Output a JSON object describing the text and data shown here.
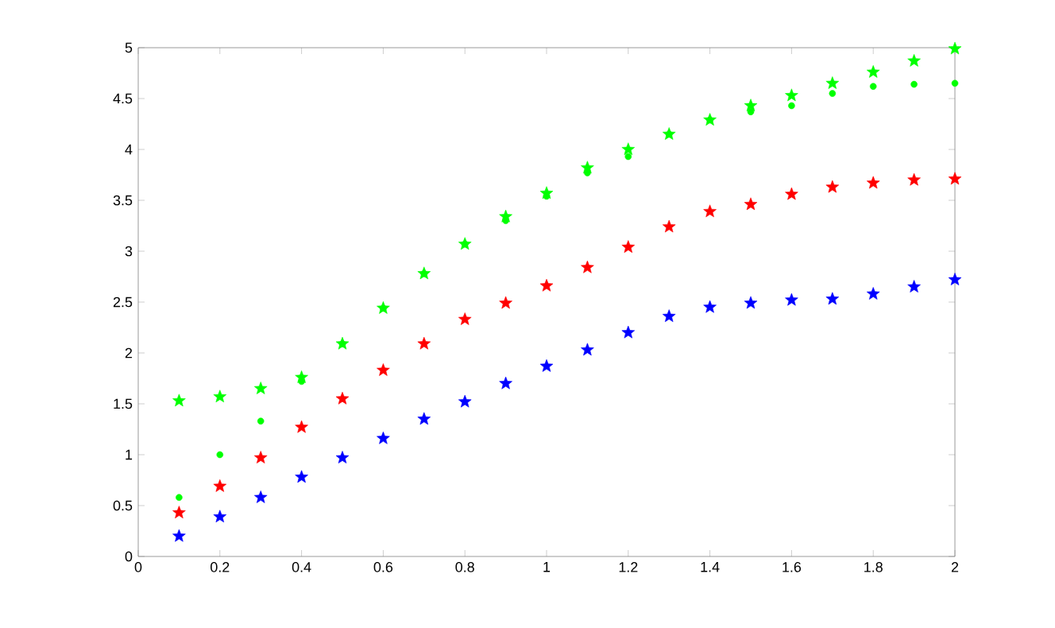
{
  "chart_data": {
    "type": "scatter",
    "x": [
      0.1,
      0.2,
      0.3,
      0.4,
      0.5,
      0.6,
      0.7,
      0.8,
      0.9,
      1.0,
      1.1,
      1.2,
      1.3,
      1.4,
      1.5,
      1.6,
      1.7,
      1.8,
      1.9,
      2.0
    ],
    "series": [
      {
        "color": "#0000ff",
        "marker": "star",
        "values": [
          0.2,
          0.39,
          0.58,
          0.78,
          0.97,
          1.16,
          1.35,
          1.52,
          1.7,
          1.87,
          2.03,
          2.2,
          2.36,
          2.45,
          2.49,
          2.52,
          2.53,
          2.58,
          2.65,
          2.72
        ]
      },
      {
        "color": "#ff0000",
        "marker": "star",
        "values": [
          0.43,
          0.69,
          0.97,
          1.27,
          1.55,
          1.83,
          2.09,
          2.33,
          2.49,
          2.66,
          2.84,
          3.04,
          3.24,
          3.39,
          3.46,
          3.56,
          3.63,
          3.67,
          3.7,
          3.71
        ]
      },
      {
        "color": "#00ff00",
        "marker": "star",
        "values": [
          1.53,
          1.57,
          1.65,
          1.76,
          2.09,
          2.44,
          2.78,
          3.07,
          3.34,
          3.57,
          3.82,
          4.0,
          4.15,
          4.29,
          4.43,
          4.53,
          4.65,
          4.76,
          4.87,
          4.99
        ]
      },
      {
        "color": "#00ff00",
        "marker": "circle",
        "values": [
          0.58,
          1.0,
          1.33,
          1.72,
          2.09,
          2.44,
          2.78,
          3.07,
          3.3,
          3.54,
          3.77,
          3.93,
          4.15,
          4.29,
          4.37,
          4.43,
          4.55,
          4.62,
          4.64,
          4.65
        ]
      }
    ],
    "xlim": [
      0,
      2
    ],
    "ylim": [
      0,
      5
    ],
    "xticks": [
      0,
      0.2,
      0.4,
      0.6,
      0.8,
      1,
      1.2,
      1.4,
      1.6,
      1.8,
      2
    ],
    "yticks": [
      0,
      0.5,
      1,
      1.5,
      2,
      2.5,
      3,
      3.5,
      4,
      4.5,
      5
    ],
    "grid": false
  }
}
